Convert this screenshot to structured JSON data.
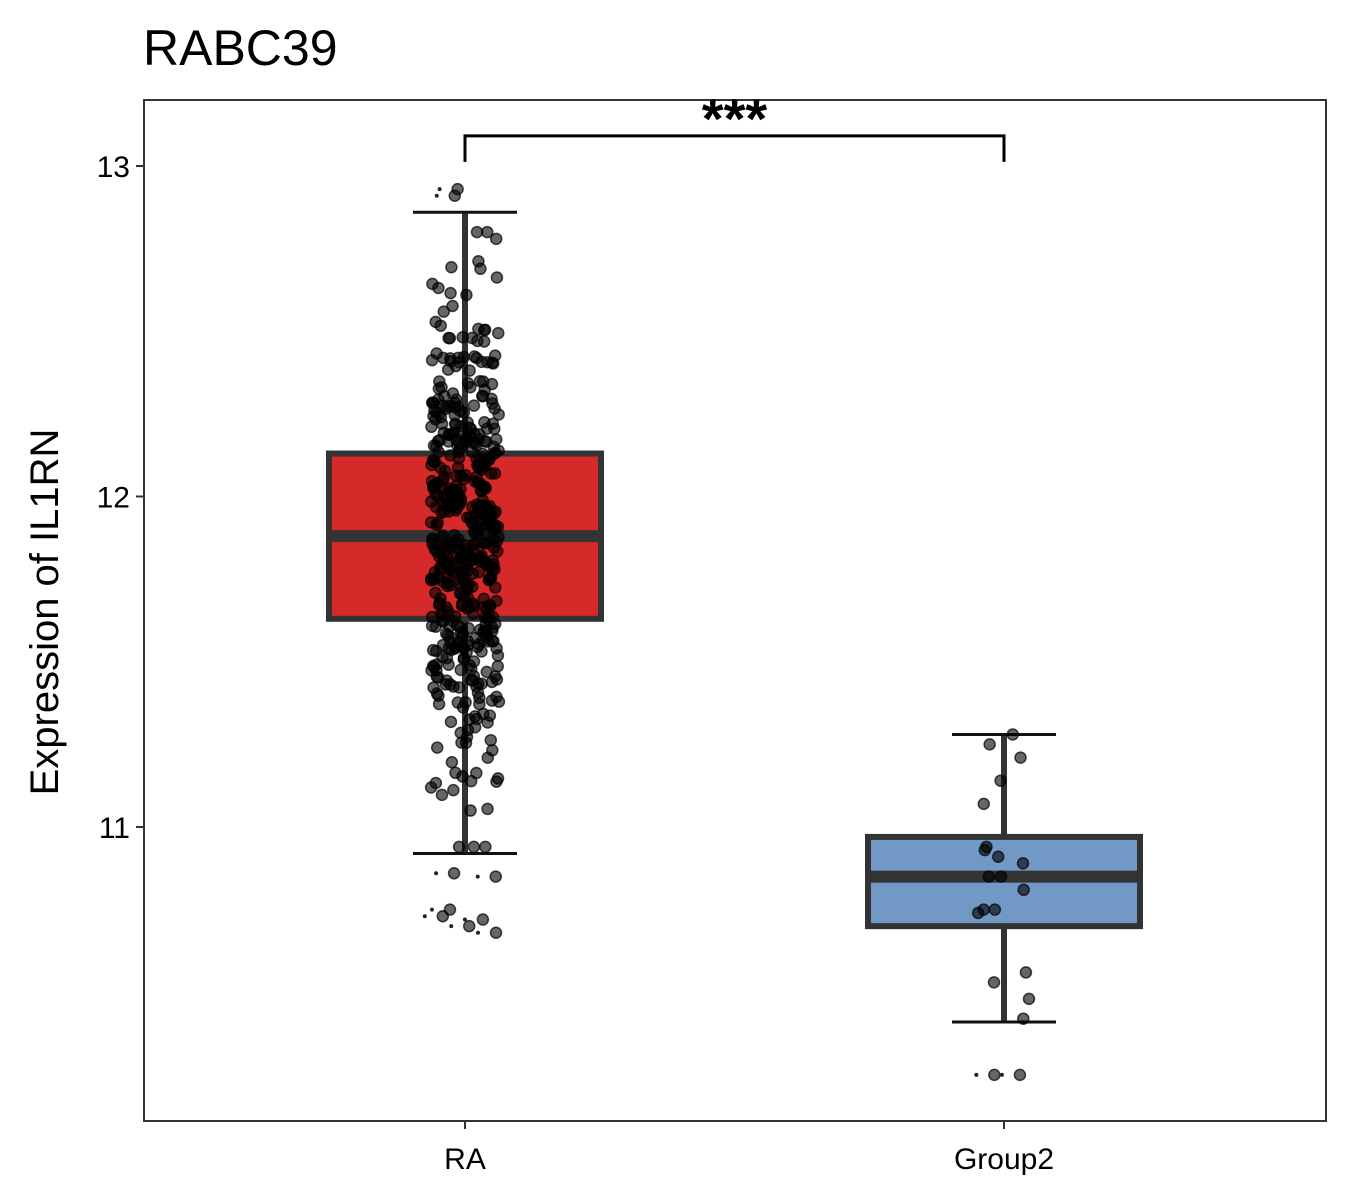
{
  "chart_data": {
    "type": "boxplot",
    "title": "RABC39",
    "xlabel": "",
    "ylabel": "Expression of IL1RN",
    "ylim": [
      10.1,
      13.2
    ],
    "yticks": [
      11,
      12,
      13
    ],
    "categories": [
      "RA",
      "Group2"
    ],
    "colors": {
      "RA": "#d62a2a",
      "Group2": "#7298c6",
      "box_stroke": "#333333",
      "point": "#000000"
    },
    "groups": [
      {
        "name": "RA",
        "q1": 11.63,
        "median": 11.88,
        "q3": 12.13,
        "whisker_low": 10.92,
        "whisker_high": 12.86,
        "n_points": 500,
        "outliers": [
          10.73,
          10.72,
          10.75,
          10.7,
          10.68,
          10.86,
          10.85,
          12.91,
          12.93
        ]
      },
      {
        "name": "Group2",
        "q1": 10.7,
        "median": 10.85,
        "q3": 10.97,
        "whisker_low": 10.41,
        "whisker_high": 11.28,
        "points": [
          11.28,
          11.25,
          11.21,
          11.14,
          11.07,
          10.94,
          10.93,
          10.91,
          10.89,
          10.85,
          10.85,
          10.81,
          10.75,
          10.75,
          10.74,
          10.56,
          10.53,
          10.48,
          10.42
        ],
        "outliers": [
          10.25,
          10.25
        ]
      }
    ],
    "significance": {
      "between": [
        "RA",
        "Group2"
      ],
      "label": "***",
      "y": 13.07
    }
  }
}
